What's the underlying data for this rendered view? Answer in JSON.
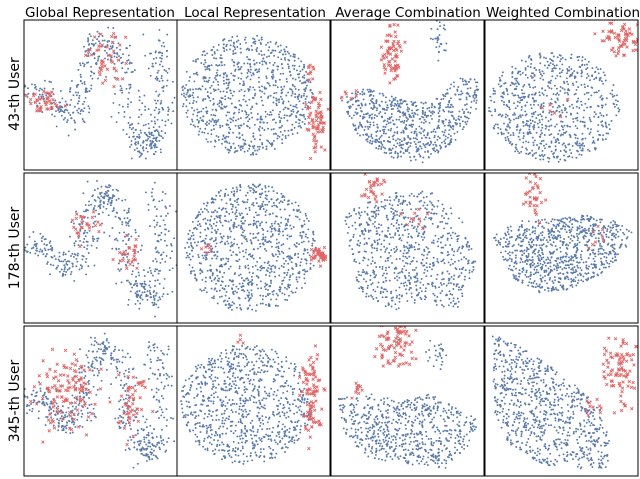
{
  "chart_data": {
    "type": "scatter",
    "rows": [
      "43-th User",
      "178-th User",
      "345-th User"
    ],
    "columns": [
      "Global Representation",
      "Local Representation",
      "Average Combination",
      "Weighted Combination"
    ],
    "series": [
      {
        "marker": "dot",
        "color": "#5a7aaa"
      },
      {
        "marker": "x",
        "color": "#e06666"
      }
    ],
    "axes_ticks": false
  }
}
